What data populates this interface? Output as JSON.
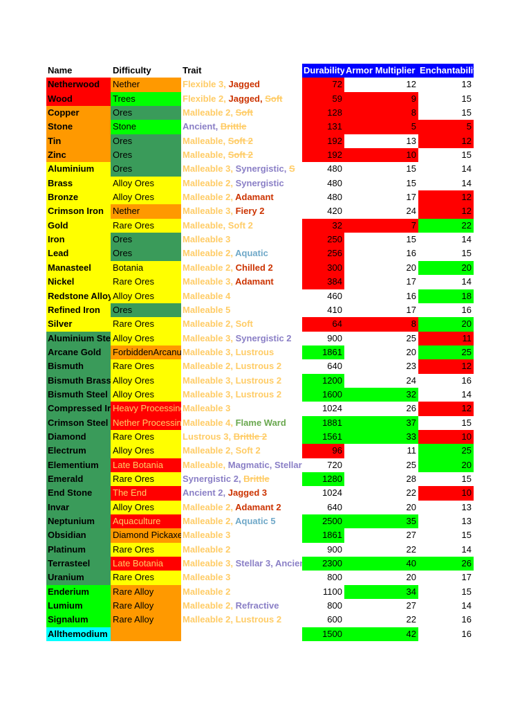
{
  "colors": {
    "red": "#ff0000",
    "green_bright": "#00ff00",
    "green_dark": "#3a9b5a",
    "orange": "#ff9900",
    "yellow": "#ffff00",
    "cyan": "#00ffff",
    "blue_header": "#0000ff",
    "trait_yellow": "#ffcc66",
    "trait_red": "#cc3300",
    "trait_purple": "#8a7fc6",
    "trait_blue": "#6fa8c8",
    "trait_green": "#6aa84f"
  },
  "headers": {
    "name": "Name",
    "difficulty": "Difficulty",
    "trait": "Trait",
    "durability": "Durability",
    "armor": "Armor Multiplier",
    "enchant": "Enchantability"
  },
  "rows": [
    {
      "name": "Netherwood",
      "nb": "#ff0000",
      "diff": "Nether",
      "db": "#ff9900",
      "dc": "#000",
      "traits": [
        {
          "t": "Flexible 3",
          "c": "#ffcc66"
        },
        {
          "t": "Jagged",
          "c": "#cc3300"
        }
      ],
      "dur": "72",
      "durb": "#ff0000",
      "arm": "12",
      "armb": "",
      "ench": "13",
      "enchb": ""
    },
    {
      "name": "Wood",
      "nb": "#ff0000",
      "diff": "Trees",
      "db": "#00ff00",
      "dc": "#000",
      "traits": [
        {
          "t": "Flexible 2",
          "c": "#ffcc66"
        },
        {
          "t": "Jagged",
          "c": "#cc3300"
        },
        {
          "t": "Soft",
          "c": "#ffcc66",
          "s": true
        }
      ],
      "dur": "59",
      "durb": "#ff0000",
      "arm": "9",
      "armb": "#ff0000",
      "ench": "15",
      "enchb": ""
    },
    {
      "name": "Copper",
      "nb": "#ff9900",
      "diff": "Ores",
      "db": "#3a9b5a",
      "dc": "#000",
      "traits": [
        {
          "t": "Malleable 2",
          "c": "#ffcc66"
        },
        {
          "t": "Soft",
          "c": "#ffcc66",
          "s": true
        }
      ],
      "dur": "128",
      "durb": "#ff0000",
      "arm": "8",
      "armb": "#ff0000",
      "ench": "15",
      "enchb": ""
    },
    {
      "name": "Stone",
      "nb": "#ff9900",
      "diff": "Stone",
      "db": "#00ff00",
      "dc": "#000",
      "traits": [
        {
          "t": "Ancient",
          "c": "#8a7fc6"
        },
        {
          "t": "Brittle",
          "c": "#ffcc66",
          "s": true
        }
      ],
      "dur": "131",
      "durb": "#ff0000",
      "arm": "5",
      "armb": "#ff0000",
      "ench": "5",
      "enchb": "#ff0000"
    },
    {
      "name": "Tin",
      "nb": "#ff9900",
      "diff": "Ores",
      "db": "#3a9b5a",
      "dc": "#000",
      "traits": [
        {
          "t": "Malleable",
          "c": "#ffcc66"
        },
        {
          "t": "Soft 2",
          "c": "#ffcc66",
          "s": true
        }
      ],
      "dur": "192",
      "durb": "#ff0000",
      "arm": "13",
      "armb": "",
      "ench": "12",
      "enchb": "#ff0000"
    },
    {
      "name": "Zinc",
      "nb": "#ff9900",
      "diff": "Ores",
      "db": "#3a9b5a",
      "dc": "#000",
      "traits": [
        {
          "t": "Malleable",
          "c": "#ffcc66"
        },
        {
          "t": "Soft 2",
          "c": "#ffcc66",
          "s": true
        }
      ],
      "dur": "192",
      "durb": "#ff0000",
      "arm": "10",
      "armb": "#ff0000",
      "ench": "15",
      "enchb": ""
    },
    {
      "name": "Aluminium",
      "nb": "#ffff00",
      "diff": "Ores",
      "db": "#3a9b5a",
      "dc": "#000",
      "traits": [
        {
          "t": "Malleable 3",
          "c": "#ffcc66"
        },
        {
          "t": "Synergistic",
          "c": "#8a7fc6"
        },
        {
          "t": "S",
          "c": "#ffcc66",
          "s": true
        }
      ],
      "dur": "480",
      "durb": "",
      "arm": "15",
      "armb": "",
      "ench": "14",
      "enchb": ""
    },
    {
      "name": "Brass",
      "nb": "#ffff00",
      "diff": "Alloy Ores",
      "db": "#ffff00",
      "dc": "#000",
      "traits": [
        {
          "t": "Malleable 2",
          "c": "#ffcc66"
        },
        {
          "t": "Synergistic",
          "c": "#8a7fc6"
        }
      ],
      "dur": "480",
      "durb": "",
      "arm": "15",
      "armb": "",
      "ench": "14",
      "enchb": ""
    },
    {
      "name": "Bronze",
      "nb": "#ffff00",
      "diff": "Alloy Ores",
      "db": "#ffff00",
      "dc": "#000",
      "traits": [
        {
          "t": "Malleable 2",
          "c": "#ffcc66"
        },
        {
          "t": "Adamant",
          "c": "#cc3300"
        }
      ],
      "dur": "480",
      "durb": "",
      "arm": "17",
      "armb": "",
      "ench": "12",
      "enchb": "#ff0000"
    },
    {
      "name": "Crimson Iron",
      "nb": "#ffff00",
      "diff": "Nether",
      "db": "#ff9900",
      "dc": "#000",
      "traits": [
        {
          "t": "Malleable 3",
          "c": "#ffcc66"
        },
        {
          "t": "Fiery 2",
          "c": "#cc3300"
        }
      ],
      "dur": "420",
      "durb": "",
      "arm": "24",
      "armb": "",
      "ench": "12",
      "enchb": "#ff0000"
    },
    {
      "name": "Gold",
      "nb": "#ffff00",
      "diff": "Rare Ores",
      "db": "#ffff00",
      "dc": "#000",
      "traits": [
        {
          "t": "Malleable",
          "c": "#ffcc66"
        },
        {
          "t": "Soft 2",
          "c": "#ffcc66"
        }
      ],
      "dur": "32",
      "durb": "#ff0000",
      "arm": "7",
      "armb": "#ff0000",
      "ench": "22",
      "enchb": "#00ff00"
    },
    {
      "name": "Iron",
      "nb": "#ffff00",
      "diff": "Ores",
      "db": "#3a9b5a",
      "dc": "#000",
      "traits": [
        {
          "t": "Malleable 3",
          "c": "#ffcc66"
        }
      ],
      "dur": "250",
      "durb": "#ff0000",
      "arm": "15",
      "armb": "",
      "ench": "14",
      "enchb": ""
    },
    {
      "name": "Lead",
      "nb": "#ffff00",
      "diff": "Ores",
      "db": "#3a9b5a",
      "dc": "#000",
      "traits": [
        {
          "t": "Malleable 2",
          "c": "#ffcc66"
        },
        {
          "t": "Aquatic",
          "c": "#6fa8c8"
        }
      ],
      "dur": "256",
      "durb": "#ff0000",
      "arm": "16",
      "armb": "",
      "ench": "15",
      "enchb": ""
    },
    {
      "name": "Manasteel",
      "nb": "#ffff00",
      "diff": "Botania",
      "db": "#ffff00",
      "dc": "#000",
      "traits": [
        {
          "t": "Malleable 2",
          "c": "#ffcc66"
        },
        {
          "t": "Chilled 2",
          "c": "#cc3300"
        }
      ],
      "dur": "300",
      "durb": "#ff0000",
      "arm": "20",
      "armb": "",
      "ench": "20",
      "enchb": "#00ff00"
    },
    {
      "name": "Nickel",
      "nb": "#ffff00",
      "diff": "Rare Ores",
      "db": "#ffff00",
      "dc": "#000",
      "traits": [
        {
          "t": "Malleable 3",
          "c": "#ffcc66"
        },
        {
          "t": "Adamant",
          "c": "#cc3300"
        }
      ],
      "dur": "384",
      "durb": "#ff0000",
      "arm": "17",
      "armb": "",
      "ench": "14",
      "enchb": ""
    },
    {
      "name": "Redstone Alloy",
      "nb": "#ffff00",
      "diff": "Alloy Ores",
      "db": "#ffff00",
      "dc": "#000",
      "traits": [
        {
          "t": "Malleable 4",
          "c": "#ffcc66"
        }
      ],
      "dur": "460",
      "durb": "",
      "arm": "16",
      "armb": "",
      "ench": "18",
      "enchb": "#00ff00"
    },
    {
      "name": "Refined Iron",
      "nb": "#ffff00",
      "diff": "Ores",
      "db": "#3a9b5a",
      "dc": "#000",
      "traits": [
        {
          "t": "Malleable 5",
          "c": "#ffcc66"
        }
      ],
      "dur": "410",
      "durb": "",
      "arm": "17",
      "armb": "",
      "ench": "16",
      "enchb": ""
    },
    {
      "name": "Silver",
      "nb": "#ffff00",
      "diff": "Rare Ores",
      "db": "#ffff00",
      "dc": "#000",
      "traits": [
        {
          "t": "Malleable 2",
          "c": "#ffcc66"
        },
        {
          "t": "Soft",
          "c": "#ffcc66"
        }
      ],
      "dur": "64",
      "durb": "#ff0000",
      "arm": "8",
      "armb": "#ff0000",
      "ench": "20",
      "enchb": "#00ff00"
    },
    {
      "name": "Aluminium Steel",
      "nb": "#3a9b5a",
      "diff": "Alloy Ores",
      "db": "#ffff00",
      "dc": "#000",
      "traits": [
        {
          "t": "Malleable 3",
          "c": "#ffcc66"
        },
        {
          "t": "Synergistic 2",
          "c": "#8a7fc6"
        }
      ],
      "dur": "900",
      "durb": "",
      "arm": "25",
      "armb": "",
      "ench": "11",
      "enchb": "#ff0000"
    },
    {
      "name": "Arcane Gold",
      "nb": "#3a9b5a",
      "diff": "ForbiddenArcanus",
      "db": "#ff9900",
      "dc": "#000",
      "traits": [
        {
          "t": "Malleable 3",
          "c": "#ffcc66"
        },
        {
          "t": "Lustrous",
          "c": "#ffcc66"
        }
      ],
      "dur": "1861",
      "durb": "#00ff00",
      "arm": "20",
      "armb": "",
      "ench": "25",
      "enchb": "#00ff00"
    },
    {
      "name": "Bismuth",
      "nb": "#3a9b5a",
      "diff": "Rare Ores",
      "db": "#ffff00",
      "dc": "#000",
      "traits": [
        {
          "t": "Malleable 2",
          "c": "#ffcc66"
        },
        {
          "t": "Lustrous 2",
          "c": "#ffcc66"
        }
      ],
      "dur": "640",
      "durb": "",
      "arm": "23",
      "armb": "",
      "ench": "12",
      "enchb": "#ff0000"
    },
    {
      "name": "Bismuth Brass",
      "nb": "#3a9b5a",
      "diff": "Alloy Ores",
      "db": "#ffff00",
      "dc": "#000",
      "traits": [
        {
          "t": "Malleable 3",
          "c": "#ffcc66"
        },
        {
          "t": "Lustrous 2",
          "c": "#ffcc66"
        }
      ],
      "dur": "1200",
      "durb": "#00ff00",
      "arm": "24",
      "armb": "",
      "ench": "16",
      "enchb": ""
    },
    {
      "name": "Bismuth Steel",
      "nb": "#3a9b5a",
      "diff": "Alloy Ores",
      "db": "#ffff00",
      "dc": "#000",
      "traits": [
        {
          "t": "Malleable 3",
          "c": "#ffcc66"
        },
        {
          "t": "Lustrous 2",
          "c": "#ffcc66"
        }
      ],
      "dur": "1600",
      "durb": "#00ff00",
      "arm": "32",
      "armb": "#00ff00",
      "ench": "14",
      "enchb": ""
    },
    {
      "name": "Compressed Iron",
      "nb": "#3a9b5a",
      "diff": "Heavy Processing",
      "db": "#ff0000",
      "dc": "#ffcc66",
      "traits": [
        {
          "t": "Malleable 3",
          "c": "#ffcc66"
        }
      ],
      "dur": "1024",
      "durb": "",
      "arm": "26",
      "armb": "",
      "ench": "12",
      "enchb": "#ff0000"
    },
    {
      "name": "Crimson Steel",
      "nb": "#3a9b5a",
      "diff": "Nether Processing",
      "db": "#ff0000",
      "dc": "#ffcc66",
      "traits": [
        {
          "t": "Malleable 4",
          "c": "#ffcc66"
        },
        {
          "t": "Flame Ward",
          "c": "#6aa84f"
        }
      ],
      "dur": "1881",
      "durb": "#00ff00",
      "arm": "37",
      "armb": "#00ff00",
      "ench": "15",
      "enchb": ""
    },
    {
      "name": "Diamond",
      "nb": "#3a9b5a",
      "diff": "Rare Ores",
      "db": "#ffff00",
      "dc": "#000",
      "traits": [
        {
          "t": "Lustrous 3",
          "c": "#ffcc66"
        },
        {
          "t": "Brittle 2",
          "c": "#ffcc66",
          "s": true
        }
      ],
      "dur": "1561",
      "durb": "#00ff00",
      "arm": "33",
      "armb": "#00ff00",
      "ench": "10",
      "enchb": "#ff0000"
    },
    {
      "name": "Electrum",
      "nb": "#3a9b5a",
      "diff": "Alloy Ores",
      "db": "#ffff00",
      "dc": "#000",
      "traits": [
        {
          "t": "Malleable 2",
          "c": "#ffcc66"
        },
        {
          "t": "Soft 2",
          "c": "#ffcc66"
        }
      ],
      "dur": "96",
      "durb": "#ff0000",
      "arm": "11",
      "armb": "",
      "ench": "25",
      "enchb": "#00ff00"
    },
    {
      "name": "Elementium",
      "nb": "#3a9b5a",
      "diff": "Late Botania",
      "db": "#ff0000",
      "dc": "#ffcc66",
      "traits": [
        {
          "t": "Malleable",
          "c": "#ffcc66"
        },
        {
          "t": "Magmatic",
          "c": "#8a7fc6"
        },
        {
          "t": "Stellar",
          "c": "#8a7fc6"
        }
      ],
      "dur": "720",
      "durb": "",
      "arm": "25",
      "armb": "",
      "ench": "20",
      "enchb": "#00ff00"
    },
    {
      "name": "Emerald",
      "nb": "#3a9b5a",
      "diff": "Rare Ores",
      "db": "#ffff00",
      "dc": "#000",
      "traits": [
        {
          "t": "Synergistic 2",
          "c": "#8a7fc6"
        },
        {
          "t": "Brittle",
          "c": "#ffcc66",
          "s": true
        }
      ],
      "dur": "1280",
      "durb": "#00ff00",
      "arm": "28",
      "armb": "",
      "ench": "15",
      "enchb": ""
    },
    {
      "name": "End Stone",
      "nb": "#3a9b5a",
      "diff": "The End",
      "db": "#ff0000",
      "dc": "#ffcc66",
      "traits": [
        {
          "t": "Ancient 2",
          "c": "#8a7fc6"
        },
        {
          "t": "Jagged 3",
          "c": "#cc3300"
        }
      ],
      "dur": "1024",
      "durb": "",
      "arm": "22",
      "armb": "",
      "ench": "10",
      "enchb": "#ff0000"
    },
    {
      "name": "Invar",
      "nb": "#3a9b5a",
      "diff": "Alloy Ores",
      "db": "#ffff00",
      "dc": "#000",
      "traits": [
        {
          "t": "Malleable 2",
          "c": "#ffcc66"
        },
        {
          "t": "Adamant 2",
          "c": "#cc3300"
        }
      ],
      "dur": "640",
      "durb": "",
      "arm": "20",
      "armb": "",
      "ench": "13",
      "enchb": ""
    },
    {
      "name": "Neptunium",
      "nb": "#3a9b5a",
      "diff": "Aquaculture",
      "db": "#ff0000",
      "dc": "#ffcc66",
      "traits": [
        {
          "t": "Malleable 2",
          "c": "#ffcc66"
        },
        {
          "t": "Aquatic 5",
          "c": "#6fa8c8"
        }
      ],
      "dur": "2500",
      "durb": "#00ff00",
      "arm": "35",
      "armb": "#00ff00",
      "ench": "13",
      "enchb": ""
    },
    {
      "name": "Obsidian",
      "nb": "#3a9b5a",
      "diff": "Diamond Pickaxe",
      "db": "#ff9900",
      "dc": "#000",
      "traits": [
        {
          "t": "Malleable 3",
          "c": "#ffcc66"
        }
      ],
      "dur": "1861",
      "durb": "#00ff00",
      "arm": "27",
      "armb": "",
      "ench": "15",
      "enchb": ""
    },
    {
      "name": "Platinum",
      "nb": "#3a9b5a",
      "diff": "Rare Ores",
      "db": "#ffff00",
      "dc": "#000",
      "traits": [
        {
          "t": "Malleable 2",
          "c": "#ffcc66"
        }
      ],
      "dur": "900",
      "durb": "",
      "arm": "22",
      "armb": "",
      "ench": "14",
      "enchb": ""
    },
    {
      "name": "Terrasteel",
      "nb": "#3a9b5a",
      "diff": "Late Botania",
      "db": "#ff0000",
      "dc": "#ffcc66",
      "traits": [
        {
          "t": "Malleable 3",
          "c": "#ffcc66"
        },
        {
          "t": "Stellar 3",
          "c": "#8a7fc6"
        },
        {
          "t": "Ancient",
          "c": "#8a7fc6"
        }
      ],
      "dur": "2300",
      "durb": "#00ff00",
      "arm": "40",
      "armb": "#00ff00",
      "ench": "26",
      "enchb": "#00ff00"
    },
    {
      "name": "Uranium",
      "nb": "#3a9b5a",
      "diff": "Rare Ores",
      "db": "#ffff00",
      "dc": "#000",
      "traits": [
        {
          "t": "Malleable 3",
          "c": "#ffcc66"
        }
      ],
      "dur": "800",
      "durb": "",
      "arm": "20",
      "armb": "",
      "ench": "17",
      "enchb": ""
    },
    {
      "name": "Enderium",
      "nb": "#00ff00",
      "diff": "Rare Alloy",
      "db": "#ff9900",
      "dc": "#000",
      "traits": [
        {
          "t": "Malleable 2",
          "c": "#ffcc66"
        }
      ],
      "dur": "1100",
      "durb": "",
      "arm": "34",
      "armb": "#00ff00",
      "ench": "15",
      "enchb": ""
    },
    {
      "name": "Lumium",
      "nb": "#00ff00",
      "diff": "Rare Alloy",
      "db": "#ff9900",
      "dc": "#000",
      "traits": [
        {
          "t": "Malleable 2",
          "c": "#ffcc66"
        },
        {
          "t": "Refractive",
          "c": "#8a7fc6"
        }
      ],
      "dur": "800",
      "durb": "",
      "arm": "27",
      "armb": "",
      "ench": "14",
      "enchb": ""
    },
    {
      "name": "Signalum",
      "nb": "#00ff00",
      "diff": "Rare Alloy",
      "db": "#ff9900",
      "dc": "#000",
      "traits": [
        {
          "t": "Malleable 2",
          "c": "#ffcc66"
        },
        {
          "t": "Lustrous 2",
          "c": "#ffcc66"
        }
      ],
      "dur": "600",
      "durb": "",
      "arm": "22",
      "armb": "",
      "ench": "16",
      "enchb": ""
    },
    {
      "name": "Allthemodium",
      "nb": "#00ffff",
      "diff": "",
      "db": "#ff9900",
      "dc": "#000",
      "traits": [],
      "dur": "1500",
      "durb": "#00ff00",
      "arm": "42",
      "armb": "#00ff00",
      "ench": "16",
      "enchb": ""
    }
  ]
}
